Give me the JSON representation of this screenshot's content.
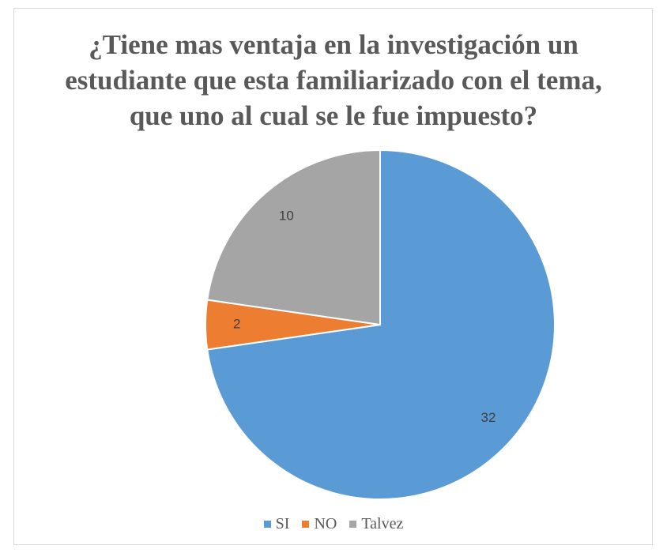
{
  "chart_data": {
    "type": "pie",
    "title": "¿Tiene mas ventaja en la investigación un estudiante que esta familiarizado con el tema, que uno al cual se le fue impuesto?",
    "categories": [
      "SI",
      "NO",
      "Talvez"
    ],
    "values": [
      32,
      2,
      10
    ],
    "colors": [
      "#5b9bd5",
      "#ed7d31",
      "#a5a5a5"
    ],
    "legend": "bottom"
  }
}
